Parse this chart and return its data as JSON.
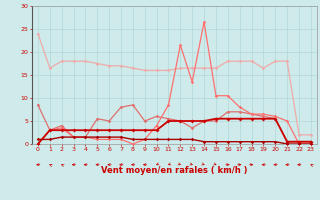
{
  "xlabel": "Vent moyen/en rafales ( km/h )",
  "xlim": [
    -0.5,
    23.5
  ],
  "ylim": [
    0,
    30
  ],
  "yticks": [
    0,
    5,
    10,
    15,
    20,
    25,
    30
  ],
  "xticks": [
    0,
    1,
    2,
    3,
    4,
    5,
    6,
    7,
    8,
    9,
    10,
    11,
    12,
    13,
    14,
    15,
    16,
    17,
    18,
    19,
    20,
    21,
    22,
    23
  ],
  "bg_color": "#ceeaea",
  "grid_color": "#b0d8d8",
  "series": [
    {
      "x": [
        0,
        1,
        2,
        3,
        4,
        5,
        6,
        7,
        8,
        9,
        10,
        11,
        12,
        13,
        14,
        15,
        16,
        17,
        18,
        19,
        20,
        21,
        22,
        23
      ],
      "y": [
        24,
        16.5,
        18,
        18,
        18,
        17.5,
        17,
        17,
        16.5,
        16,
        16,
        16,
        16.5,
        16.5,
        16.5,
        16.5,
        18,
        18,
        18,
        16.5,
        18,
        18,
        2,
        2
      ],
      "color": "#f0aaaa",
      "lw": 0.9,
      "marker": "D",
      "ms": 1.8,
      "zorder": 2
    },
    {
      "x": [
        0,
        1,
        2,
        3,
        4,
        5,
        6,
        7,
        8,
        9,
        10,
        11,
        12,
        13,
        14,
        15,
        16,
        17,
        18,
        19,
        20,
        21,
        22,
        23
      ],
      "y": [
        8.5,
        3,
        4,
        1.5,
        1.5,
        5.5,
        5,
        8,
        8.5,
        5,
        6,
        5.5,
        5,
        3.5,
        5,
        5,
        7,
        7,
        6.5,
        6,
        5.5,
        0.5,
        0.5,
        0.5
      ],
      "color": "#e07070",
      "lw": 0.9,
      "marker": "D",
      "ms": 1.8,
      "zorder": 3
    },
    {
      "x": [
        0,
        1,
        2,
        3,
        4,
        5,
        6,
        7,
        8,
        9,
        10,
        11,
        12,
        13,
        14,
        15,
        16,
        17,
        18,
        19,
        20,
        21,
        22,
        23
      ],
      "y": [
        0,
        3,
        3.5,
        1.5,
        1.5,
        1,
        1,
        1,
        0,
        1,
        4,
        8.5,
        21.5,
        13.5,
        26.5,
        10.5,
        10.5,
        8,
        6.5,
        6.5,
        6,
        5,
        0,
        0
      ],
      "color": "#ff7070",
      "lw": 0.9,
      "marker": "D",
      "ms": 1.8,
      "zorder": 4
    },
    {
      "x": [
        0,
        1,
        2,
        3,
        4,
        5,
        6,
        7,
        8,
        9,
        10,
        11,
        12,
        13,
        14,
        15,
        16,
        17,
        18,
        19,
        20,
        21,
        22,
        23
      ],
      "y": [
        0,
        3,
        3,
        3,
        3,
        3,
        3,
        3,
        3,
        3,
        3,
        5,
        5,
        5,
        5,
        5.5,
        5.5,
        5.5,
        5.5,
        5.5,
        5.5,
        0.5,
        0.5,
        0.5
      ],
      "color": "#cc0000",
      "lw": 1.3,
      "marker": "D",
      "ms": 2.0,
      "zorder": 5
    },
    {
      "x": [
        0,
        1,
        2,
        3,
        4,
        5,
        6,
        7,
        8,
        9,
        10,
        11,
        12,
        13,
        14,
        15,
        16,
        17,
        18,
        19,
        20,
        21,
        22,
        23
      ],
      "y": [
        1,
        1,
        1.5,
        1.5,
        1.5,
        1.5,
        1.5,
        1.5,
        1,
        1,
        1,
        1,
        1,
        1,
        0.5,
        0.5,
        0.5,
        0.5,
        0.5,
        0.5,
        0.5,
        0,
        0,
        0
      ],
      "color": "#aa0000",
      "lw": 1.0,
      "marker": "D",
      "ms": 1.8,
      "zorder": 5
    }
  ],
  "wind_arrows": {
    "x": [
      0,
      1,
      2,
      3,
      4,
      5,
      6,
      7,
      8,
      9,
      10,
      11,
      12,
      13,
      14,
      15,
      16,
      17,
      18,
      19,
      20,
      21,
      22,
      23
    ],
    "angles": [
      270,
      225,
      225,
      270,
      270,
      270,
      270,
      270,
      270,
      270,
      315,
      315,
      45,
      45,
      45,
      45,
      90,
      90,
      90,
      270,
      270,
      270,
      270,
      225
    ]
  },
  "tick_color": "#cc0000",
  "label_color": "#cc0000",
  "xlabel_fontsize": 6,
  "tick_fontsize": 4.5
}
